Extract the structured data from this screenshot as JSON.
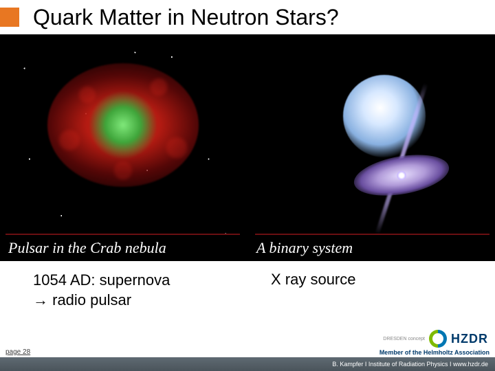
{
  "title": "Quark Matter in Neutron Stars?",
  "panels": {
    "left": {
      "caption": "Pulsar in the Crab nebula",
      "subtext_line1": "1054 AD: supernova",
      "subtext_line2": "→ radio pulsar",
      "bg_color": "#000000",
      "nebula_core_color": "#7fe87a",
      "nebula_shell_color": "#c81e14"
    },
    "right": {
      "caption": "A binary system",
      "subtext": "X ray source",
      "bg_color": "#000000",
      "star_color": "#d7e8ff",
      "disk_color": "#b09ad8",
      "jet_color": "#c8b4ff"
    }
  },
  "footer": {
    "page": "page 28",
    "member": "Member of the Helmholtz Association",
    "byline": "B. Kampfer  I  Institute of Radiation Physics  I  www.hzdr.de",
    "logo_text": "HZDR",
    "logo_sub": "DRESDEN concept"
  },
  "colors": {
    "title_marker": "#e87722",
    "hr_line": "#6b0f12",
    "footer_bar": "#4a545b",
    "member_color": "#003a6b"
  }
}
